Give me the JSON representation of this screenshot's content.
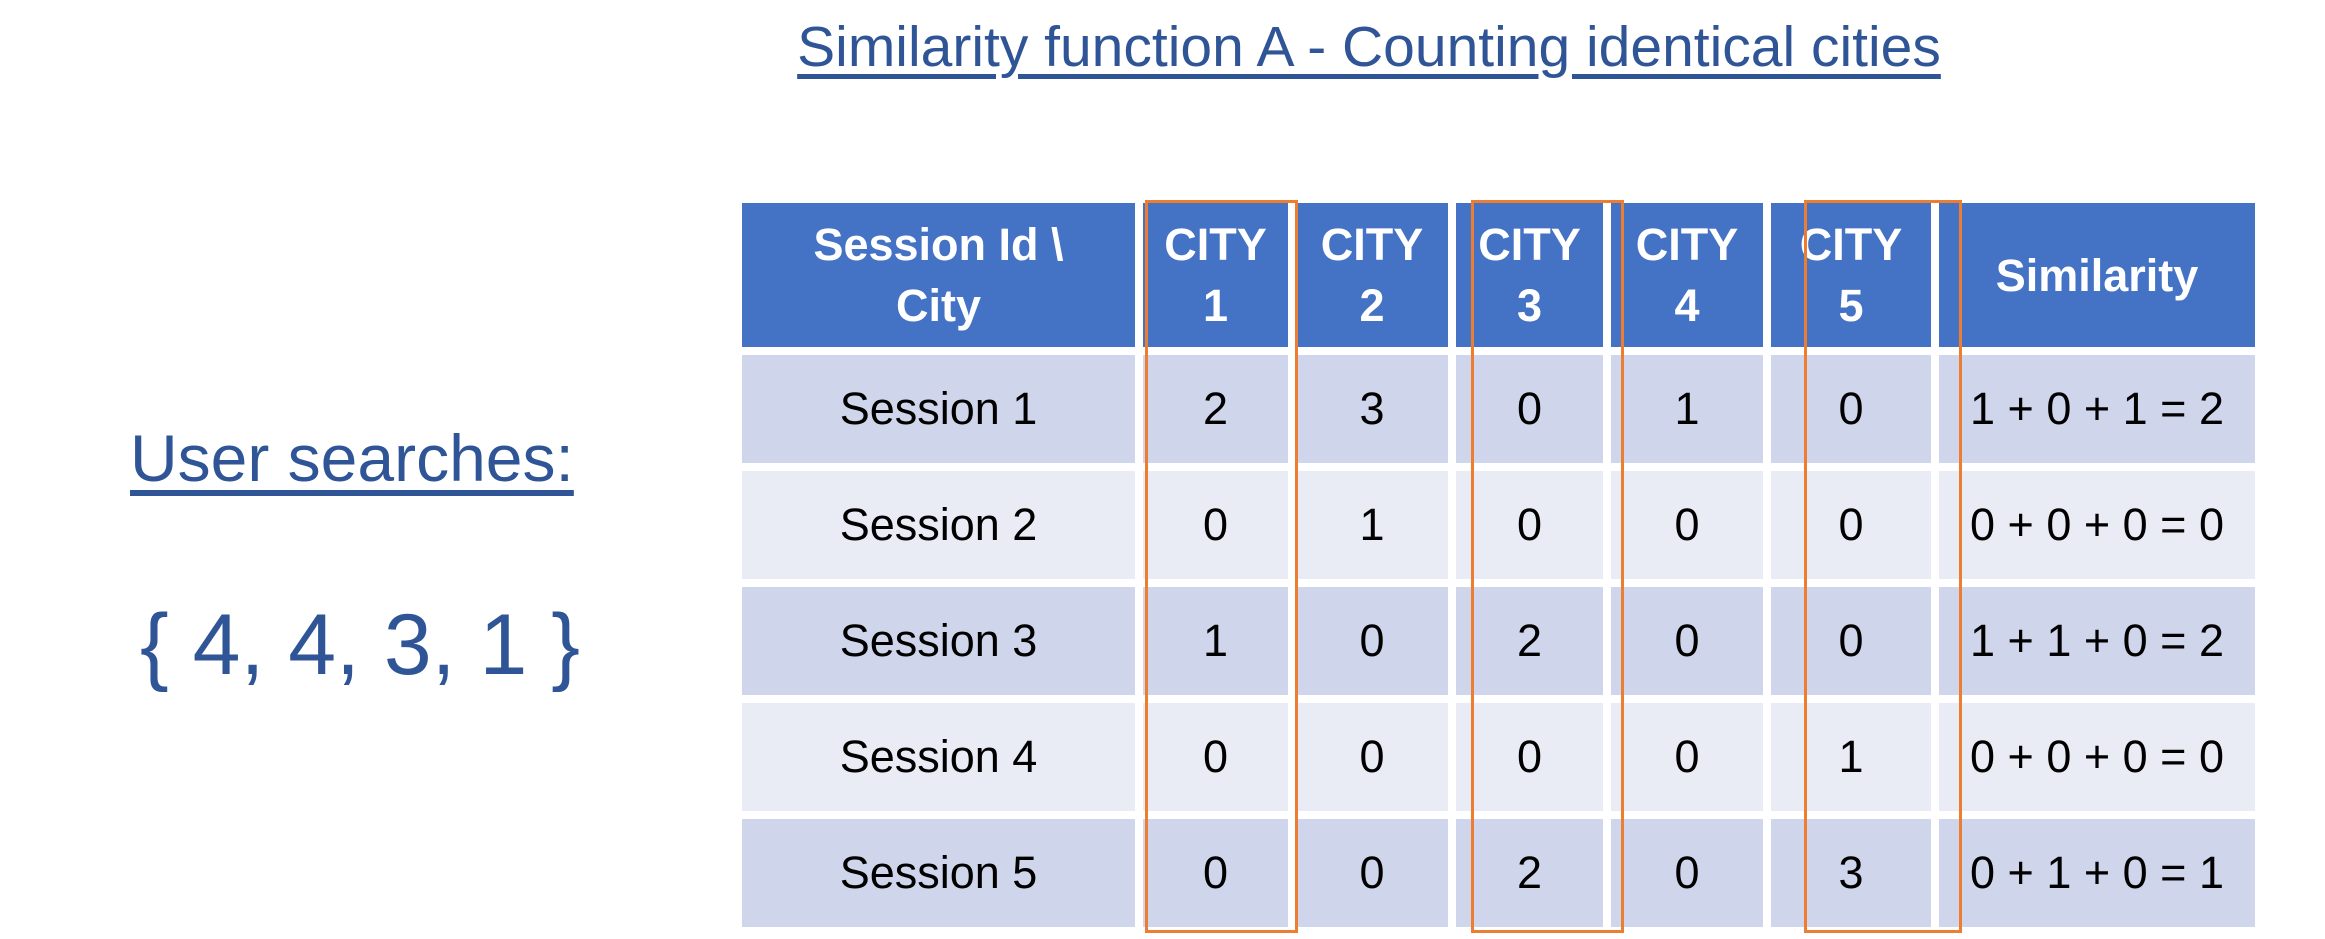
{
  "title": "Similarity function A - Counting identical cities",
  "user_searches": {
    "heading": "User searches:",
    "set": "{ 4, 4, 3, 1 }"
  },
  "table": {
    "header": {
      "session": [
        "Session Id \\",
        "City"
      ],
      "cities": [
        [
          "CITY",
          "1"
        ],
        [
          "CITY",
          "2"
        ],
        [
          "CITY",
          "3"
        ],
        [
          "CITY",
          "4"
        ],
        [
          "CITY",
          "5"
        ]
      ],
      "similarity": "Similarity"
    },
    "rows": [
      {
        "session": "Session 1",
        "cities": [
          "2",
          "3",
          "0",
          "1",
          "0"
        ],
        "similarity": "1 + 0 + 1 = 2"
      },
      {
        "session": "Session 2",
        "cities": [
          "0",
          "1",
          "0",
          "0",
          "0"
        ],
        "similarity": "0 + 0 + 0 = 0"
      },
      {
        "session": "Session 3",
        "cities": [
          "1",
          "0",
          "2",
          "0",
          "0"
        ],
        "similarity": "1 + 1 + 0 = 2"
      },
      {
        "session": "Session 4",
        "cities": [
          "0",
          "0",
          "0",
          "0",
          "1"
        ],
        "similarity": "0 + 0 + 0 = 0"
      },
      {
        "session": "Session 5",
        "cities": [
          "0",
          "0",
          "2",
          "0",
          "3"
        ],
        "similarity": "0 + 1 + 0 = 1"
      }
    ],
    "highlighted_columns": [
      "CITY 1",
      "CITY 3",
      "CITY 5"
    ]
  },
  "colors": {
    "title_text": "#2f5597",
    "header_bg": "#4472c4",
    "row_dark": "#cfd5ea",
    "row_light": "#e9ebf5",
    "highlight_border": "#ed7d31"
  }
}
